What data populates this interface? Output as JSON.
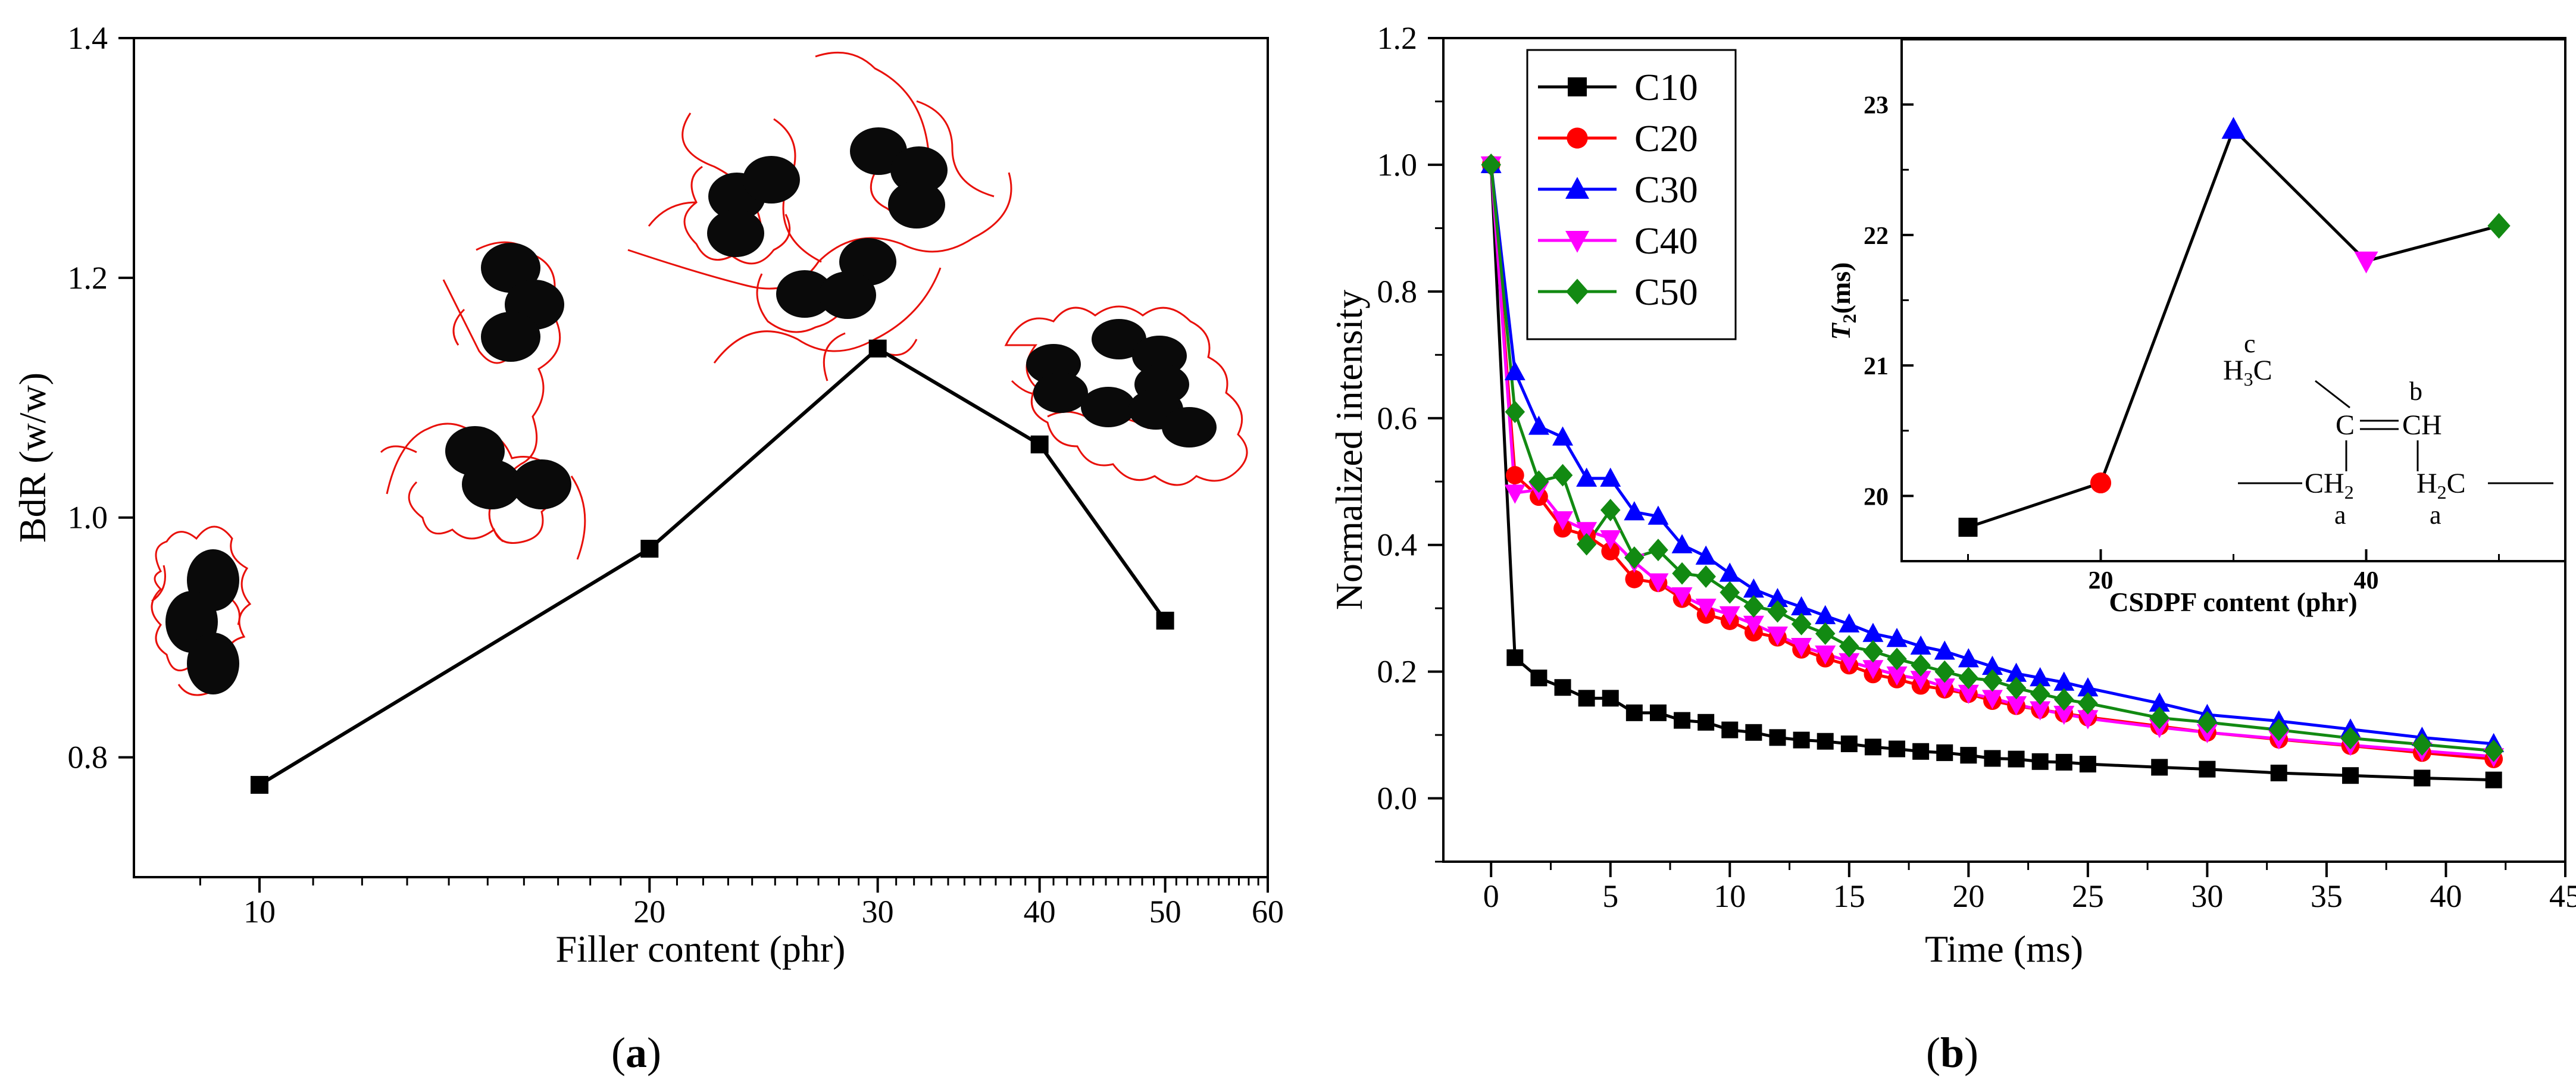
{
  "colors": {
    "axis": "#000000",
    "sketch_red": "#e8100a",
    "particle": "#0a0a0a",
    "C10": "#000000",
    "C20": "#ff0000",
    "C30": "#0000ff",
    "C40": "#ff00ff",
    "C50": "#128a12"
  },
  "chart_data": [
    {
      "panel": "(a)",
      "type": "line",
      "xscale": "log",
      "xlabel": "Filler content (phr)",
      "ylabel": "BdR (w/w)",
      "xlim": [
        8,
        60
      ],
      "ylim": [
        0.7,
        1.4
      ],
      "xticks": [
        10,
        20,
        30,
        40,
        50,
        60
      ],
      "yticks": [
        0.8,
        1.0,
        1.2,
        1.4
      ],
      "ytick_labels": [
        "0.8",
        "1.0",
        "1.2",
        "1.4"
      ],
      "series": [
        {
          "name": "BdR",
          "marker": "square",
          "color": "#000000",
          "x": [
            10,
            20,
            30,
            40,
            50
          ],
          "y": [
            0.777,
            0.974,
            1.141,
            1.061,
            0.914
          ]
        }
      ],
      "annotations": [
        "filler-network sketch 10 phr",
        "filler-network sketch 20 phr",
        "filler-network sketch 30 phr",
        "filler-network sketch 50 phr"
      ]
    },
    {
      "panel": "(b)",
      "type": "line",
      "xlabel": "Time (ms)",
      "ylabel": "Normalized intensity",
      "xlim": [
        -2,
        45
      ],
      "ylim": [
        -0.1,
        1.2
      ],
      "xticks": [
        0,
        5,
        10,
        15,
        20,
        25,
        30,
        35,
        40,
        45
      ],
      "yticks": [
        0.0,
        0.2,
        0.4,
        0.6,
        0.8,
        1.0,
        1.2
      ],
      "ytick_labels": [
        "0.0",
        "0.2",
        "0.4",
        "0.6",
        "0.8",
        "1.0",
        "1.2"
      ],
      "legend_position": "top-left",
      "series": [
        {
          "name": "C10",
          "marker": "square",
          "color": "#000000",
          "x": [
            0,
            1,
            2,
            3,
            4,
            5,
            6,
            7,
            8,
            9,
            10,
            11,
            12,
            13,
            14,
            15,
            16,
            17,
            18,
            19,
            20,
            21,
            22,
            23,
            24,
            25,
            28,
            30,
            33,
            36,
            39,
            42
          ],
          "y": [
            1.0,
            0.222,
            0.19,
            0.175,
            0.158,
            0.158,
            0.135,
            0.135,
            0.123,
            0.12,
            0.108,
            0.104,
            0.096,
            0.092,
            0.09,
            0.086,
            0.081,
            0.078,
            0.074,
            0.072,
            0.068,
            0.063,
            0.062,
            0.058,
            0.057,
            0.054,
            0.049,
            0.046,
            0.04,
            0.036,
            0.032,
            0.029
          ]
        },
        {
          "name": "C20",
          "marker": "circle",
          "color": "#ff0000",
          "x": [
            0,
            1,
            2,
            3,
            4,
            5,
            6,
            7,
            8,
            9,
            10,
            11,
            12,
            13,
            14,
            15,
            16,
            17,
            18,
            19,
            20,
            21,
            22,
            23,
            24,
            25,
            28,
            30,
            33,
            36,
            39,
            42
          ],
          "y": [
            1.0,
            0.51,
            0.476,
            0.426,
            0.415,
            0.39,
            0.346,
            0.34,
            0.315,
            0.29,
            0.28,
            0.262,
            0.254,
            0.235,
            0.221,
            0.21,
            0.196,
            0.188,
            0.178,
            0.172,
            0.165,
            0.154,
            0.146,
            0.14,
            0.134,
            0.128,
            0.114,
            0.104,
            0.093,
            0.083,
            0.072,
            0.062
          ]
        },
        {
          "name": "C30",
          "marker": "triangle-up",
          "color": "#0000ff",
          "x": [
            0,
            1,
            2,
            3,
            4,
            5,
            6,
            7,
            8,
            9,
            10,
            11,
            12,
            13,
            14,
            15,
            16,
            17,
            18,
            19,
            20,
            21,
            22,
            23,
            24,
            25,
            28,
            30,
            33,
            36,
            39,
            42
          ],
          "y": [
            1.0,
            0.673,
            0.587,
            0.57,
            0.505,
            0.505,
            0.452,
            0.445,
            0.4,
            0.382,
            0.355,
            0.33,
            0.315,
            0.302,
            0.288,
            0.275,
            0.26,
            0.252,
            0.24,
            0.232,
            0.22,
            0.208,
            0.197,
            0.19,
            0.183,
            0.174,
            0.15,
            0.132,
            0.122,
            0.109,
            0.096,
            0.086
          ]
        },
        {
          "name": "C40",
          "marker": "triangle-down",
          "color": "#ff00ff",
          "x": [
            0,
            1,
            2,
            3,
            4,
            5,
            6,
            7,
            8,
            9,
            10,
            11,
            12,
            13,
            14,
            15,
            16,
            17,
            18,
            19,
            20,
            21,
            22,
            23,
            24,
            25,
            28,
            30,
            33,
            36,
            39,
            42
          ],
          "y": [
            1.0,
            0.482,
            0.487,
            0.44,
            0.423,
            0.41,
            0.373,
            0.342,
            0.32,
            0.302,
            0.29,
            0.275,
            0.258,
            0.24,
            0.228,
            0.216,
            0.205,
            0.195,
            0.188,
            0.176,
            0.166,
            0.158,
            0.148,
            0.14,
            0.133,
            0.126,
            0.112,
            0.104,
            0.094,
            0.084,
            0.075,
            0.066
          ]
        },
        {
          "name": "C50",
          "marker": "diamond",
          "color": "#128a12",
          "x": [
            0,
            1,
            2,
            3,
            4,
            5,
            6,
            7,
            8,
            9,
            10,
            11,
            12,
            13,
            14,
            15,
            16,
            17,
            18,
            19,
            20,
            21,
            22,
            23,
            24,
            25,
            28,
            30,
            33,
            36,
            39,
            42
          ],
          "y": [
            1.0,
            0.61,
            0.5,
            0.51,
            0.401,
            0.455,
            0.38,
            0.392,
            0.355,
            0.35,
            0.325,
            0.303,
            0.295,
            0.275,
            0.26,
            0.24,
            0.232,
            0.22,
            0.21,
            0.2,
            0.19,
            0.186,
            0.174,
            0.165,
            0.156,
            0.15,
            0.127,
            0.12,
            0.108,
            0.095,
            0.085,
            0.075
          ]
        }
      ]
    },
    {
      "panel": "(b) inset",
      "type": "line",
      "xlabel": "CSDPF content (phr)",
      "ylabel_italic": "T",
      "ylabel_sub": "2",
      "ylabel_unit": "(ms)",
      "xlim": [
        5,
        55
      ],
      "ylim": [
        19.5,
        23.5
      ],
      "xticks": [
        20,
        40
      ],
      "yticks": [
        20,
        21,
        22,
        23
      ],
      "series": [
        {
          "name": "T2",
          "color": "#000000",
          "x": [
            10,
            20,
            30,
            40,
            50
          ],
          "y": [
            19.76,
            20.1,
            22.81,
            21.8,
            22.07
          ],
          "markers": [
            "square",
            "circle",
            "triangle-up",
            "triangle-down",
            "diamond"
          ],
          "marker_colors": [
            "#000000",
            "#ff0000",
            "#0000ff",
            "#ff00ff",
            "#128a12"
          ]
        }
      ],
      "structure": {
        "ch3": "H3C",
        "ch3_main": "H",
        "ch3_sub": "3",
        "ch3_tail": "C",
        "c_atom": "C",
        "ch_atom": "CH",
        "ch2_left_main": "CH",
        "ch2_left_sub": "2",
        "ch2_right_main": "H",
        "ch2_right_sub": "2",
        "ch2_right_tail": "C",
        "label_a1": "a",
        "label_a2": "a",
        "label_b": "b",
        "label_c": "c"
      }
    }
  ],
  "captions": {
    "a": "a",
    "b": "b"
  }
}
